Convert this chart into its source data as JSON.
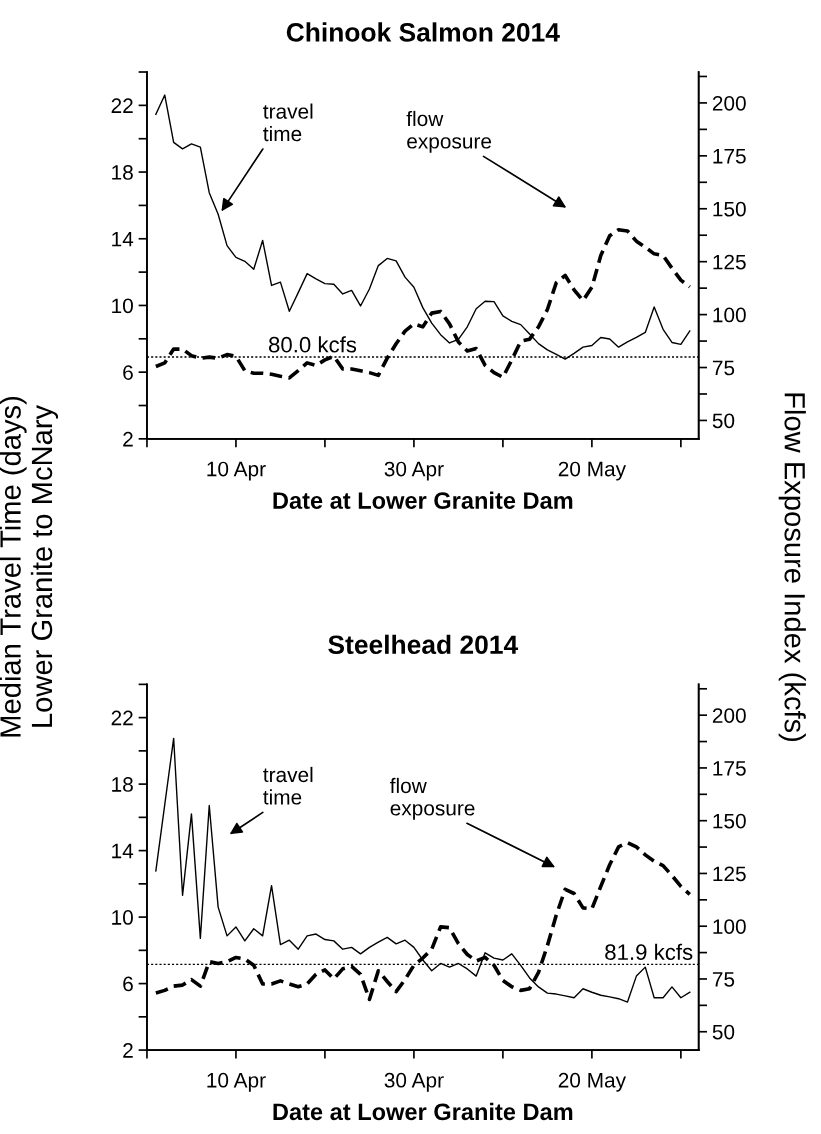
{
  "chart_data": [
    {
      "type": "line",
      "title": "Chinook Salmon 2014",
      "xlabel": "Date at Lower Granite Dam",
      "ylabel": "Median Travel Time (days)\nLower Granite to McNary",
      "y2label": "Flow Exposure Index (kcfs)",
      "x": [
        "2014-04-01",
        "2014-04-02",
        "2014-04-03",
        "2014-04-04",
        "2014-04-05",
        "2014-04-06",
        "2014-04-07",
        "2014-04-08",
        "2014-04-09",
        "2014-04-10",
        "2014-04-11",
        "2014-04-12",
        "2014-04-13",
        "2014-04-14",
        "2014-04-15",
        "2014-04-16",
        "2014-04-17",
        "2014-04-18",
        "2014-04-19",
        "2014-04-20",
        "2014-04-21",
        "2014-04-22",
        "2014-04-23",
        "2014-04-24",
        "2014-04-25",
        "2014-04-26",
        "2014-04-27",
        "2014-04-28",
        "2014-04-29",
        "2014-04-30",
        "2014-05-01",
        "2014-05-02",
        "2014-05-03",
        "2014-05-04",
        "2014-05-05",
        "2014-05-06",
        "2014-05-07",
        "2014-05-08",
        "2014-05-09",
        "2014-05-10",
        "2014-05-11",
        "2014-05-12",
        "2014-05-13",
        "2014-05-14",
        "2014-05-15",
        "2014-05-16",
        "2014-05-17",
        "2014-05-18",
        "2014-05-19",
        "2014-05-20",
        "2014-05-21",
        "2014-05-22",
        "2014-05-23",
        "2014-05-24",
        "2014-05-25",
        "2014-05-26",
        "2014-05-27",
        "2014-05-28",
        "2014-05-29",
        "2014-05-30",
        "2014-05-31"
      ],
      "series": [
        {
          "color": "#000000",
          "line_style": "solid",
          "values": [
            21.46,
            22.62,
            19.78,
            19.39,
            19.69,
            19.5,
            16.76,
            15.47,
            13.59,
            12.88,
            12.65,
            12.17,
            13.9,
            11.2,
            11.4,
            9.65,
            10.77,
            11.91,
            11.59,
            11.31,
            11.27,
            10.69,
            10.9,
            9.97,
            10.99,
            12.39,
            12.82,
            12.67,
            11.7,
            11.09,
            9.87,
            8.94,
            8.25,
            7.75,
            7.97,
            8.72,
            9.8,
            10.25,
            10.23,
            9.37,
            9.05,
            8.85,
            8.29,
            7.71,
            7.34,
            7.06,
            6.78,
            7.13,
            7.5,
            7.6,
            8.08,
            7.99,
            7.5,
            7.82,
            8.08,
            8.38,
            9.91,
            8.57,
            7.78,
            7.67,
            8.47
          ]
        },
        {
          "color": "#000000",
          "line_style": "dashed",
          "axis": "y2",
          "values": [
            75.5,
            77.2,
            83.7,
            83.7,
            80.6,
            79.4,
            79.9,
            79.4,
            81.1,
            80.3,
            73.5,
            72.3,
            72.3,
            71.8,
            70.9,
            70.1,
            73.5,
            77.2,
            76.0,
            78.6,
            80.3,
            74.3,
            74.3,
            73.5,
            72.6,
            71.3,
            79.4,
            86.2,
            92.2,
            95.6,
            94.2,
            100.7,
            101.5,
            95.6,
            87.1,
            82.8,
            84.0,
            76.0,
            72.6,
            70.4,
            78.6,
            87.4,
            88.4,
            94.2,
            102.4,
            115.1,
            118.5,
            111.7,
            106.6,
            112.9,
            127.9,
            137.2,
            140.1,
            139.5,
            134.7,
            131.8,
            128.7,
            127.9,
            121.9,
            116.3,
            113.1
          ]
        }
      ],
      "xlim": [
        "2014-03-31",
        "2014-06-01"
      ],
      "xticks": [
        {
          "value": "2014-03-31",
          "label": null
        },
        {
          "value": "2014-04-10",
          "label": "10 Apr"
        },
        {
          "value": "2014-04-20",
          "label": null
        },
        {
          "value": "2014-04-30",
          "label": "30 Apr"
        },
        {
          "value": "2014-05-10",
          "label": null
        },
        {
          "value": "2014-05-20",
          "label": "20 May"
        },
        {
          "value": "2014-05-30",
          "label": null
        }
      ],
      "ylim": [
        2,
        24
      ],
      "yticks": [
        2,
        {
          "value": 4,
          "label": null
        },
        6,
        {
          "value": 8,
          "label": null
        },
        10,
        {
          "value": 12,
          "label": null
        },
        14,
        {
          "value": 16,
          "label": null
        },
        18,
        {
          "value": 20,
          "label": null
        },
        22,
        {
          "value": 24,
          "label": null
        }
      ],
      "y2lim": [
        41.3,
        214.6
      ],
      "y2ticks": [
        50,
        {
          "value": 62.5,
          "label": null
        },
        75,
        {
          "value": 87.5,
          "label": null
        },
        100,
        {
          "value": 112.5,
          "label": null
        },
        125,
        {
          "value": 137.5,
          "label": null
        },
        150,
        {
          "value": 162.5,
          "label": null
        },
        175,
        {
          "value": 187.5,
          "label": null
        },
        200,
        {
          "value": 212.5,
          "label": null
        }
      ],
      "ref_lines": [
        {
          "axis": "y2",
          "value": 80.0,
          "label": "80.0 kcfs",
          "line_style": "dotted",
          "color": "#000000"
        }
      ],
      "annotations": [
        "travel\ntime",
        "flow\nexposure"
      ],
      "grid": false,
      "legend": false
    },
    {
      "type": "line",
      "title": "Steelhead 2014",
      "xlabel": "Date at Lower Granite Dam",
      "x": [
        "2014-04-01",
        "2014-04-02",
        "2014-04-03",
        "2014-04-04",
        "2014-04-05",
        "2014-04-06",
        "2014-04-07",
        "2014-04-08",
        "2014-04-09",
        "2014-04-10",
        "2014-04-11",
        "2014-04-12",
        "2014-04-13",
        "2014-04-14",
        "2014-04-15",
        "2014-04-16",
        "2014-04-17",
        "2014-04-18",
        "2014-04-19",
        "2014-04-20",
        "2014-04-21",
        "2014-04-22",
        "2014-04-23",
        "2014-04-24",
        "2014-04-25",
        "2014-04-26",
        "2014-04-27",
        "2014-04-28",
        "2014-04-29",
        "2014-04-30",
        "2014-05-01",
        "2014-05-02",
        "2014-05-03",
        "2014-05-04",
        "2014-05-05",
        "2014-05-06",
        "2014-05-07",
        "2014-05-08",
        "2014-05-09",
        "2014-05-10",
        "2014-05-11",
        "2014-05-12",
        "2014-05-13",
        "2014-05-14",
        "2014-05-15",
        "2014-05-16",
        "2014-05-17",
        "2014-05-18",
        "2014-05-19",
        "2014-05-20",
        "2014-05-21",
        "2014-05-22",
        "2014-05-23",
        "2014-05-24",
        "2014-05-25",
        "2014-05-26",
        "2014-05-27",
        "2014-05-28",
        "2014-05-29",
        "2014-05-30",
        "2014-05-31"
      ],
      "series": [
        {
          "color": "#000000",
          "line_style": "solid",
          "values": [
            12.78,
            16.77,
            20.75,
            11.31,
            16.21,
            8.72,
            16.71,
            10.6,
            8.87,
            9.41,
            8.57,
            9.3,
            8.87,
            11.89,
            8.35,
            8.61,
            8.07,
            8.87,
            8.98,
            8.65,
            8.57,
            8.07,
            8.18,
            7.79,
            8.18,
            8.5,
            8.78,
            8.39,
            8.61,
            8.18,
            7.42,
            6.77,
            7.21,
            6.99,
            7.21,
            6.88,
            6.45,
            7.85,
            7.53,
            7.42,
            7.79,
            7.1,
            6.34,
            5.8,
            5.43,
            5.37,
            5.26,
            5.15,
            5.69,
            5.48,
            5.3,
            5.2,
            5.09,
            4.89,
            6.45,
            6.99,
            5.15,
            5.15,
            5.8,
            5.15,
            5.48
          ]
        },
        {
          "color": "#000000",
          "line_style": "dashed",
          "axis": "y2",
          "values": [
            68.4,
            69.6,
            71.6,
            72.1,
            74.7,
            71.6,
            83.2,
            82.3,
            83.2,
            85.2,
            84.5,
            81.5,
            72.6,
            72.6,
            74.1,
            72.6,
            71.3,
            72.6,
            77.2,
            79.3,
            75.0,
            79.8,
            81.0,
            77.2,
            65.3,
            78.9,
            73.8,
            69.0,
            74.7,
            81.5,
            84.9,
            89.1,
            99.7,
            99.3,
            91.7,
            86.6,
            83.5,
            85.2,
            81.5,
            74.3,
            71.3,
            69.6,
            70.4,
            78.1,
            90.8,
            105.3,
            117.5,
            115.5,
            108.7,
            108.3,
            118.9,
            129.1,
            137.6,
            139.6,
            137.6,
            133.8,
            130.8,
            128.7,
            124.0,
            118.9,
            115.1
          ]
        }
      ],
      "xlim": [
        "2014-03-31",
        "2014-06-01"
      ],
      "xticks": [
        {
          "value": "2014-03-31",
          "label": null
        },
        {
          "value": "2014-04-10",
          "label": "10 Apr"
        },
        {
          "value": "2014-04-20",
          "label": null
        },
        {
          "value": "2014-04-30",
          "label": "30 Apr"
        },
        {
          "value": "2014-05-10",
          "label": null
        },
        {
          "value": "2014-05-20",
          "label": "20 May"
        },
        {
          "value": "2014-05-30",
          "label": null
        }
      ],
      "ylim": [
        2,
        24
      ],
      "yticks": [
        2,
        {
          "value": 4,
          "label": null
        },
        6,
        {
          "value": 8,
          "label": null
        },
        10,
        {
          "value": 12,
          "label": null
        },
        14,
        {
          "value": 16,
          "label": null
        },
        18,
        {
          "value": 20,
          "label": null
        },
        22,
        {
          "value": 24,
          "label": null
        }
      ],
      "y2lim": [
        41.3,
        214.6
      ],
      "y2ticks": [
        50,
        {
          "value": 62.5,
          "label": null
        },
        75,
        {
          "value": 87.5,
          "label": null
        },
        100,
        {
          "value": 112.5,
          "label": null
        },
        125,
        {
          "value": 137.5,
          "label": null
        },
        150,
        {
          "value": 162.5,
          "label": null
        },
        175,
        {
          "value": 187.5,
          "label": null
        },
        200,
        {
          "value": 212.5,
          "label": null
        }
      ],
      "ref_lines": [
        {
          "axis": "y2",
          "value": 81.9,
          "label": "81.9 kcfs",
          "line_style": "dotted",
          "color": "#000000"
        }
      ],
      "annotations": [
        "travel\ntime",
        "flow\nexposure"
      ],
      "grid": false,
      "legend": false
    }
  ]
}
